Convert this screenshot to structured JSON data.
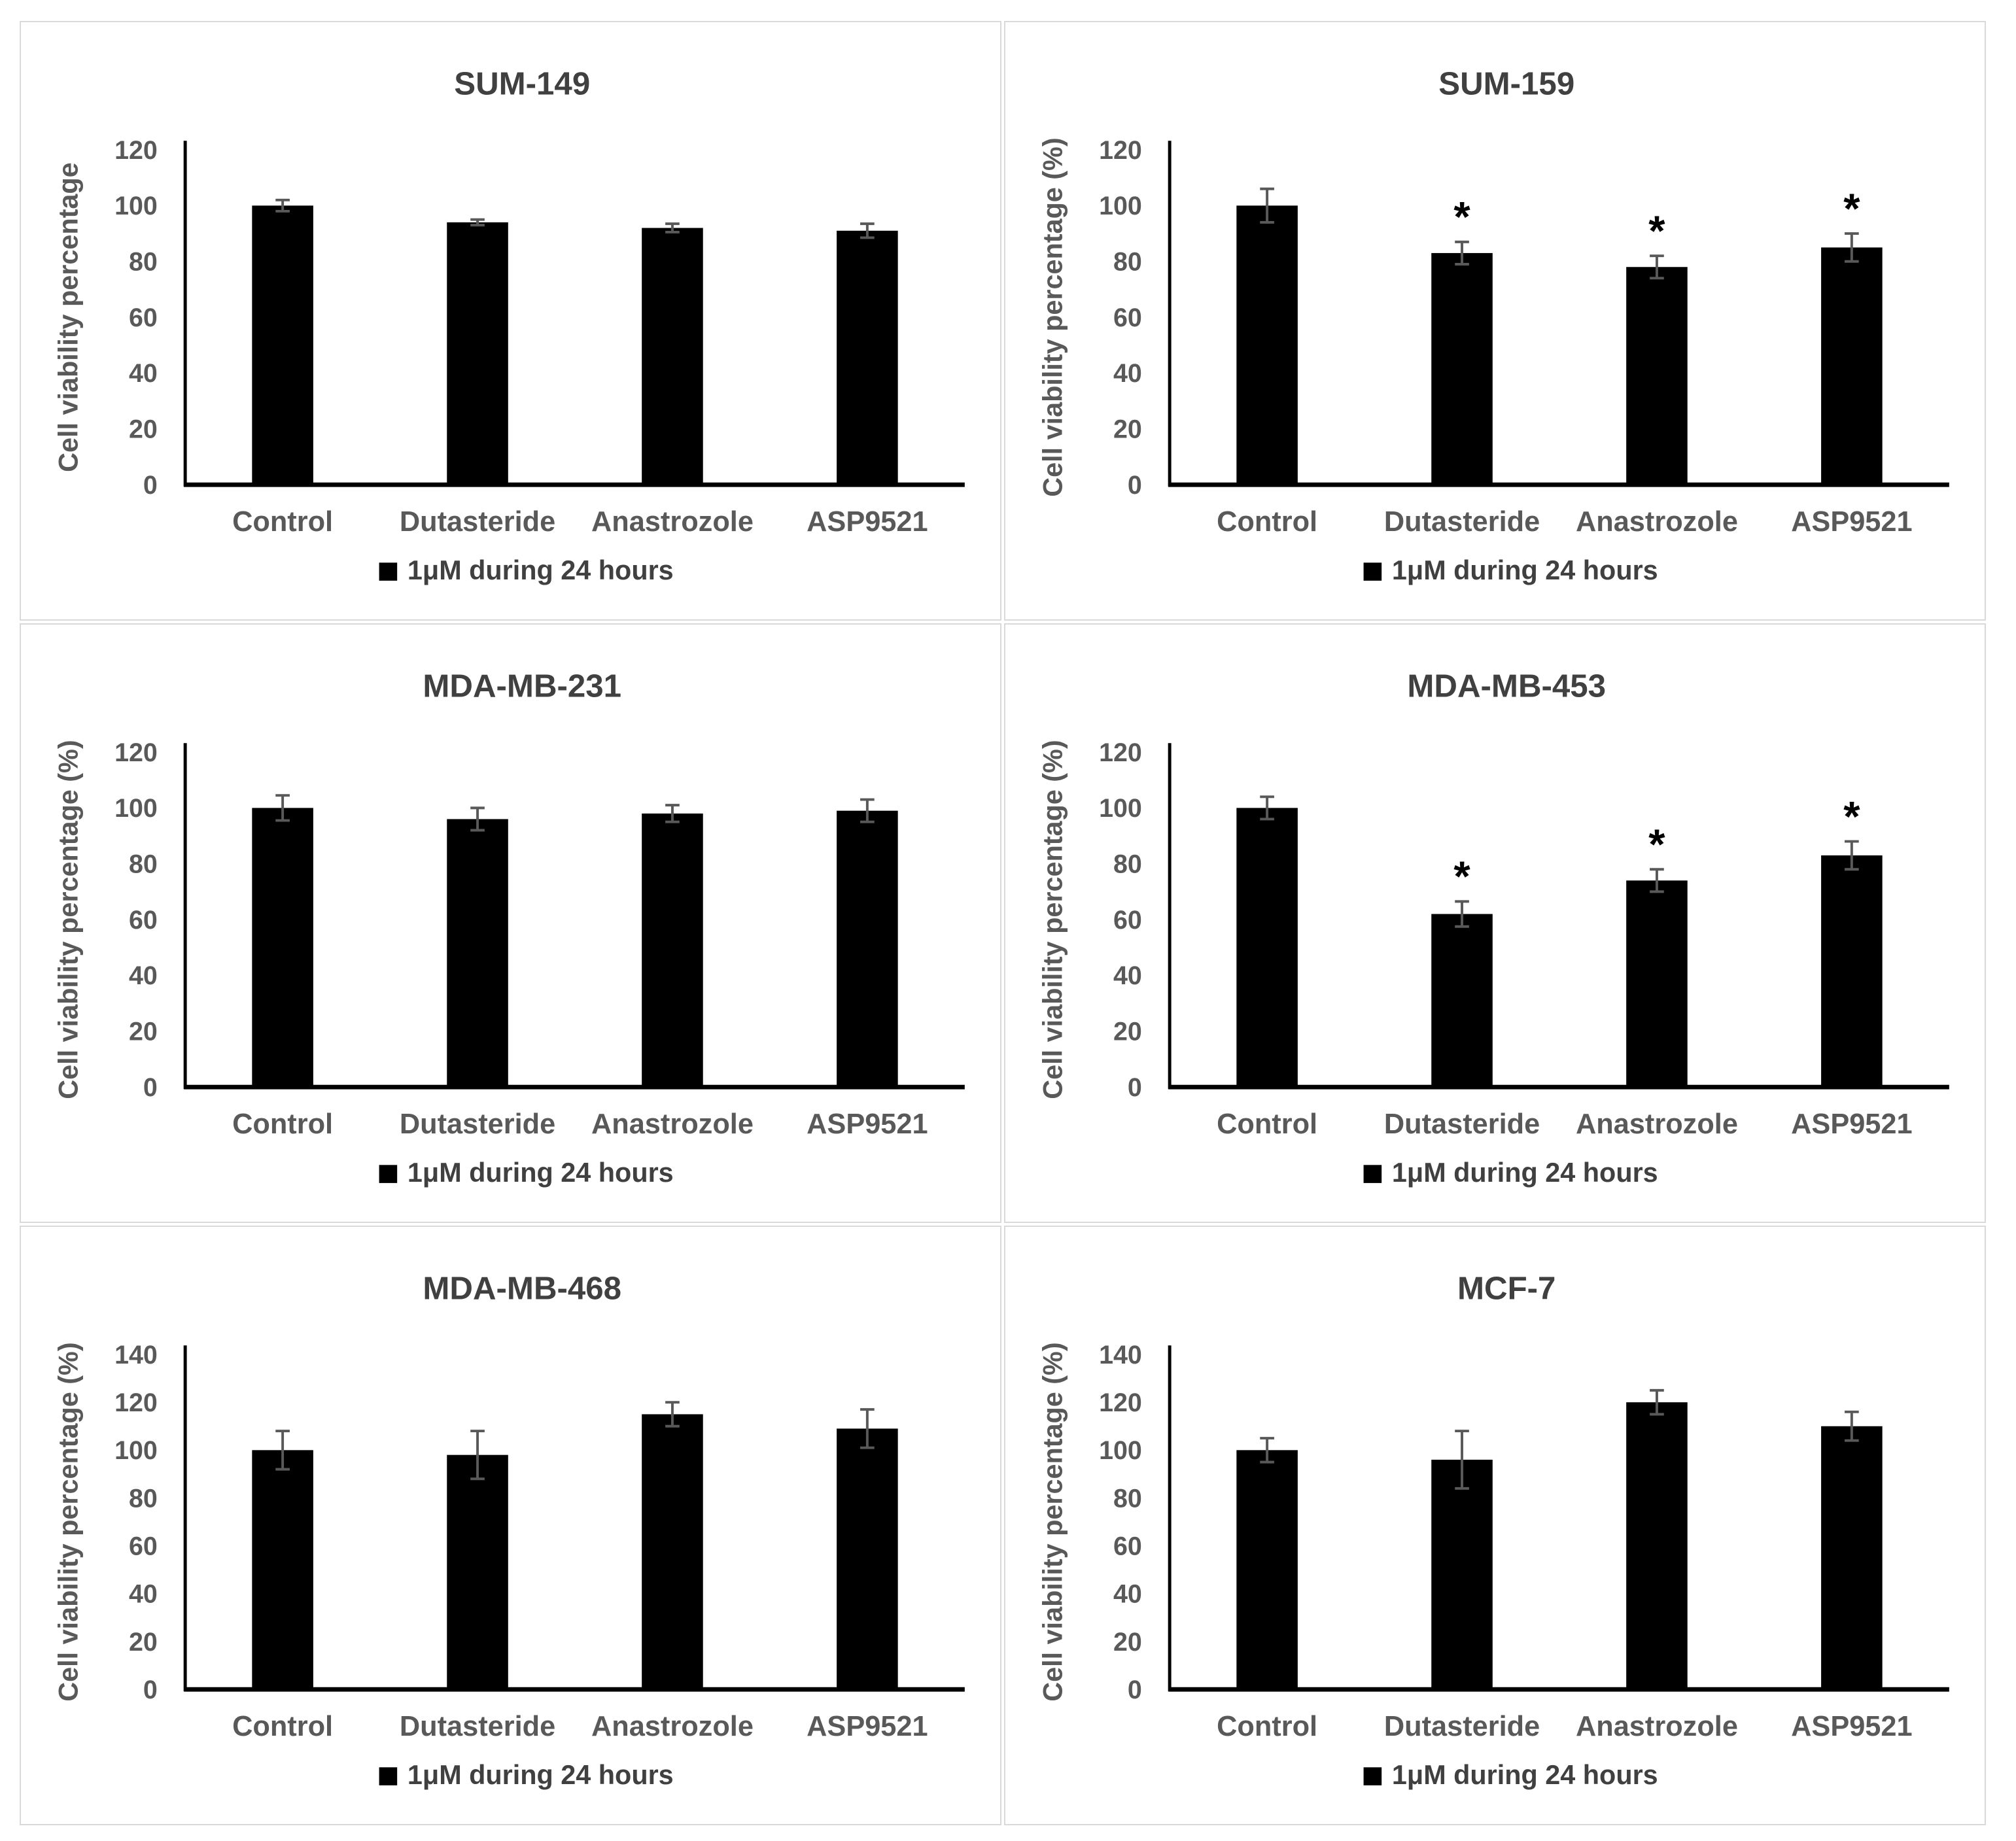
{
  "figure": {
    "description": "Six-panel bar chart figure of cell viability assays in breast cancer cell lines",
    "legend_label": "1μM during 24 hours",
    "x_categories": [
      "Control",
      "Dutasteride",
      "Anastrozole",
      "ASP9521"
    ]
  },
  "colors": {
    "bar": "#000000",
    "error_bar": "#595959",
    "axis_line": "#000000",
    "title_text": "#404040",
    "axis_text": "#595959",
    "significance_marker": "#000000",
    "panel_border": "#d9d9d9",
    "background": "#ffffff"
  },
  "chart_data": [
    {
      "type": "bar",
      "title": "SUM-149",
      "ylabel": "Cell viability percentage",
      "xlabel": "",
      "categories": [
        "Control",
        "Dutasteride",
        "Anastrozole",
        "ASP9521"
      ],
      "values": [
        100,
        94,
        92,
        91
      ],
      "errors": [
        2,
        1,
        1.5,
        2.5
      ],
      "significance": [
        "",
        "",
        "",
        ""
      ],
      "ylim": [
        0,
        120
      ],
      "yticks": [
        0,
        20,
        40,
        60,
        80,
        100,
        120
      ],
      "legend_label": "1μM during 24 hours",
      "legend_position": "bottom",
      "grid": false
    },
    {
      "type": "bar",
      "title": "SUM-159",
      "ylabel": "Cell viability percentage (%)",
      "xlabel": "",
      "categories": [
        "Control",
        "Dutasteride",
        "Anastrozole",
        "ASP9521"
      ],
      "values": [
        100,
        83,
        78,
        85
      ],
      "errors": [
        6,
        4,
        4,
        5
      ],
      "significance": [
        "",
        "*",
        "*",
        "*"
      ],
      "ylim": [
        0,
        120
      ],
      "yticks": [
        0,
        20,
        40,
        60,
        80,
        100,
        120
      ],
      "legend_label": "1μM during 24 hours",
      "legend_position": "bottom",
      "grid": false
    },
    {
      "type": "bar",
      "title": "MDA-MB-231",
      "ylabel": "Cell viability percentage (%)",
      "xlabel": "",
      "categories": [
        "Control",
        "Dutasteride",
        "Anastrozole",
        "ASP9521"
      ],
      "values": [
        100,
        96,
        98,
        99
      ],
      "errors": [
        4.5,
        4,
        3,
        4
      ],
      "significance": [
        "",
        "",
        "",
        ""
      ],
      "ylim": [
        0,
        120
      ],
      "yticks": [
        0,
        20,
        40,
        60,
        80,
        100,
        120
      ],
      "legend_label": "1μM during 24 hours",
      "legend_position": "bottom",
      "grid": false
    },
    {
      "type": "bar",
      "title": "MDA-MB-453",
      "ylabel": "Cell viability percentage (%)",
      "xlabel": "",
      "categories": [
        "Control",
        "Dutasteride",
        "Anastrozole",
        "ASP9521"
      ],
      "values": [
        100,
        62,
        74,
        83
      ],
      "errors": [
        4,
        4.5,
        4,
        5
      ],
      "significance": [
        "",
        "*",
        "*",
        "*"
      ],
      "ylim": [
        0,
        120
      ],
      "yticks": [
        0,
        20,
        40,
        60,
        80,
        100,
        120
      ],
      "legend_label": "1μM during 24 hours",
      "legend_position": "bottom",
      "grid": false
    },
    {
      "type": "bar",
      "title": "MDA-MB-468",
      "ylabel": "Cell viability percentage (%)",
      "xlabel": "",
      "categories": [
        "Control",
        "Dutasteride",
        "Anastrozole",
        "ASP9521"
      ],
      "values": [
        100,
        98,
        115,
        109
      ],
      "errors": [
        8,
        10,
        5,
        8
      ],
      "significance": [
        "",
        "",
        "",
        ""
      ],
      "ylim": [
        0,
        140
      ],
      "yticks": [
        0,
        20,
        40,
        60,
        80,
        100,
        120,
        140
      ],
      "legend_label": "1μM during 24 hours",
      "legend_position": "bottom",
      "grid": false
    },
    {
      "type": "bar",
      "title": "MCF-7",
      "ylabel": "Cell viability percentage (%)",
      "xlabel": "",
      "categories": [
        "Control",
        "Dutasteride",
        "Anastrozole",
        "ASP9521"
      ],
      "values": [
        100,
        96,
        120,
        110
      ],
      "errors": [
        5,
        12,
        5,
        6
      ],
      "significance": [
        "",
        "",
        "",
        ""
      ],
      "ylim": [
        0,
        140
      ],
      "yticks": [
        0,
        20,
        40,
        60,
        80,
        100,
        120,
        140
      ],
      "legend_label": "1μM during 24 hours",
      "legend_position": "bottom",
      "grid": false
    }
  ]
}
